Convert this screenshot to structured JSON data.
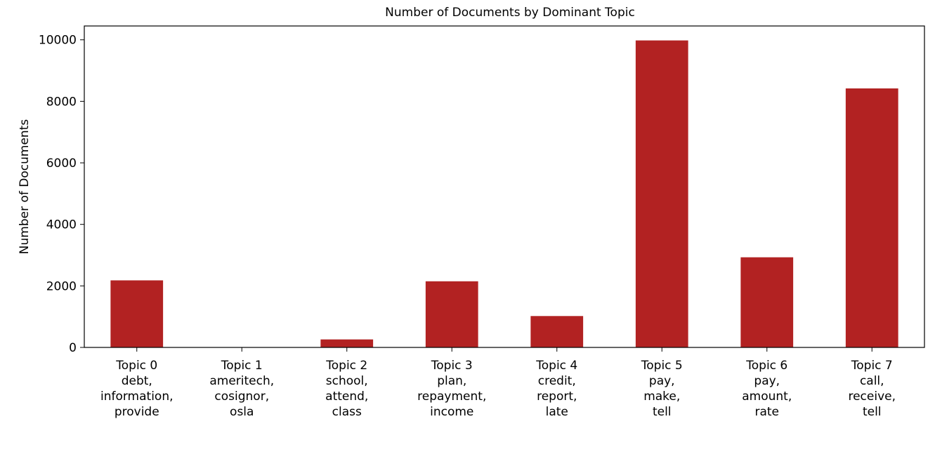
{
  "chart_data": {
    "type": "bar",
    "title": "Number of Documents by Dominant Topic",
    "xlabel": "",
    "ylabel": "Number of Documents",
    "ylim": [
      0,
      10450
    ],
    "yticks": [
      0,
      2000,
      4000,
      6000,
      8000,
      10000
    ],
    "bar_color": "#b22222",
    "grid": false,
    "categories": [
      [
        "Topic 0",
        "debt,",
        "information,",
        "provide"
      ],
      [
        "Topic 1",
        "ameritech,",
        "cosignor,",
        "osla"
      ],
      [
        "Topic 2",
        "school,",
        "attend,",
        "class"
      ],
      [
        "Topic 3",
        "plan,",
        "repayment,",
        "income"
      ],
      [
        "Topic 4",
        "credit,",
        "report,",
        "late"
      ],
      [
        "Topic 5",
        "pay,",
        "make,",
        "tell"
      ],
      [
        "Topic 6",
        "pay,",
        "amount,",
        "rate"
      ],
      [
        "Topic 7",
        "call,",
        "receive,",
        "tell"
      ]
    ],
    "values": [
      2180,
      0,
      260,
      2150,
      1020,
      9980,
      2930,
      8420
    ]
  }
}
